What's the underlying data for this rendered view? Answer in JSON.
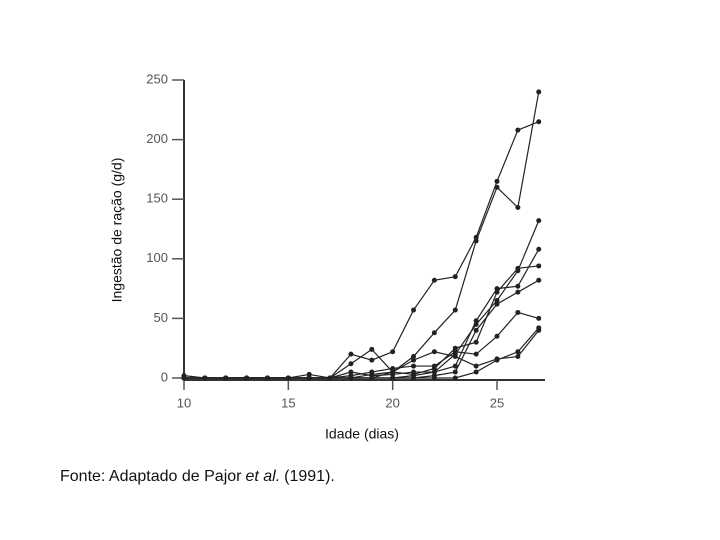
{
  "chart_data": {
    "type": "line",
    "xlabel": "Idade (dias)",
    "ylabel": "Ingestão de ração (g/d)",
    "x": [
      10,
      11,
      12,
      13,
      14,
      15,
      16,
      17,
      18,
      19,
      20,
      21,
      22,
      23,
      24,
      25,
      26,
      27
    ],
    "series": [
      {
        "color": "#222222",
        "values": [
          2,
          0,
          0,
          0,
          0,
          0,
          0,
          0,
          20,
          15,
          22,
          57,
          82,
          85,
          118,
          165,
          208,
          215
        ]
      },
      {
        "color": "#222222",
        "values": [
          0,
          0,
          0,
          0,
          0,
          0,
          0,
          0,
          0,
          3,
          5,
          18,
          38,
          57,
          115,
          160,
          143,
          240
        ]
      },
      {
        "color": "#222222",
        "values": [
          0,
          0,
          0,
          0,
          0,
          0,
          3,
          0,
          0,
          0,
          0,
          2,
          5,
          20,
          45,
          65,
          90,
          132
        ]
      },
      {
        "color": "#222222",
        "values": [
          0,
          0,
          0,
          0,
          0,
          0,
          0,
          0,
          5,
          2,
          3,
          5,
          5,
          10,
          48,
          75,
          77,
          108
        ]
      },
      {
        "color": "#222222",
        "values": [
          0,
          0,
          0,
          0,
          0,
          0,
          0,
          0,
          0,
          0,
          5,
          3,
          8,
          25,
          30,
          72,
          92,
          94
        ]
      },
      {
        "color": "#222222",
        "values": [
          0,
          0,
          0,
          0,
          0,
          0,
          0,
          0,
          0,
          0,
          0,
          0,
          2,
          5,
          40,
          62,
          72,
          82
        ]
      },
      {
        "color": "#222222",
        "values": [
          0,
          0,
          0,
          0,
          0,
          0,
          0,
          0,
          2,
          5,
          8,
          10,
          10,
          22,
          20,
          35,
          55,
          50
        ]
      },
      {
        "color": "#222222",
        "values": [
          0,
          0,
          0,
          0,
          0,
          0,
          0,
          0,
          0,
          0,
          0,
          0,
          0,
          0,
          5,
          15,
          22,
          42
        ]
      },
      {
        "color": "#222222",
        "values": [
          0,
          0,
          0,
          0,
          0,
          0,
          0,
          0,
          12,
          24,
          5,
          15,
          22,
          18,
          10,
          16,
          18,
          40
        ]
      }
    ],
    "xlim": [
      10,
      27.3
    ],
    "xticks": [
      10,
      15,
      20,
      25
    ],
    "ylim": [
      0,
      250
    ],
    "yticks": [
      0,
      50,
      100,
      150,
      200,
      250
    ],
    "source": {
      "prefix": "Fonte: Adaptado de Pajor",
      "italic": "et al.",
      "suffix": "(1991)."
    }
  }
}
